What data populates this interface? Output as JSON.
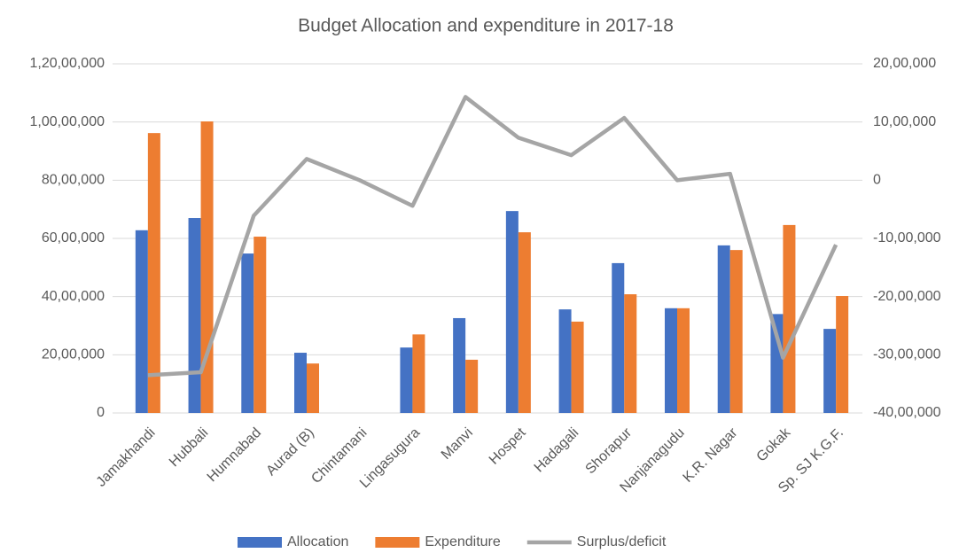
{
  "chart_data": {
    "type": "bar_line",
    "title": "Budget Allocation and expenditure in 2017-18",
    "categories": [
      "Jamakhandi",
      "Hubbali",
      "Humnabad",
      "Aurad (B)",
      "Chintamani",
      "Lingasugura",
      "Manvi",
      "Hospet",
      "Hadagali",
      "Shorapur",
      "Nanjanagudu",
      "K.R. Nagar",
      "Gokak",
      "Sp. SJ K.G.F."
    ],
    "series": [
      {
        "name": "Allocation",
        "type": "bar",
        "color": "#4472c4",
        "values": [
          6280000,
          6700000,
          5480000,
          2070000,
          0,
          2250000,
          3260000,
          6940000,
          3560000,
          5150000,
          3600000,
          5760000,
          3400000,
          2890000
        ]
      },
      {
        "name": "Expenditure",
        "type": "bar",
        "color": "#ed7d31",
        "values": [
          9620000,
          10020000,
          6060000,
          1700000,
          0,
          2700000,
          1830000,
          6210000,
          3140000,
          4080000,
          3600000,
          5600000,
          6460000,
          4020000
        ]
      },
      {
        "name": "Surplus/deficit",
        "type": "line",
        "axis": "y2",
        "color": "#a5a5a5",
        "values": [
          -3350000,
          -3300000,
          -610000,
          365000,
          0,
          -440000,
          1430000,
          730000,
          430000,
          1070000,
          0,
          110000,
          -3050000,
          -1110000
        ]
      }
    ],
    "ylim": [
      0,
      12000000
    ],
    "yticks": [
      0,
      {
        "value": 2000000,
        "label": "20,00,000"
      },
      {
        "value": 4000000,
        "label": "40,00,000"
      },
      {
        "value": 6000000,
        "label": "60,00,000"
      },
      {
        "value": 8000000,
        "label": "80,00,000"
      },
      {
        "value": 10000000,
        "label": "1,00,00,000"
      },
      {
        "value": 12000000,
        "label": "1,20,00,000"
      }
    ],
    "y2lim": [
      -4000000,
      2000000
    ],
    "y2ticks": [
      {
        "value": -4000000,
        "label": "-40,00,000"
      },
      {
        "value": -3000000,
        "label": "-30,00,000"
      },
      {
        "value": -2000000,
        "label": "-20,00,000"
      },
      {
        "value": -1000000,
        "label": "-10,00,000"
      },
      0,
      {
        "value": 1000000,
        "label": "10,00,000"
      },
      {
        "value": 2000000,
        "label": "20,00,000"
      }
    ],
    "legend": "bottom"
  }
}
